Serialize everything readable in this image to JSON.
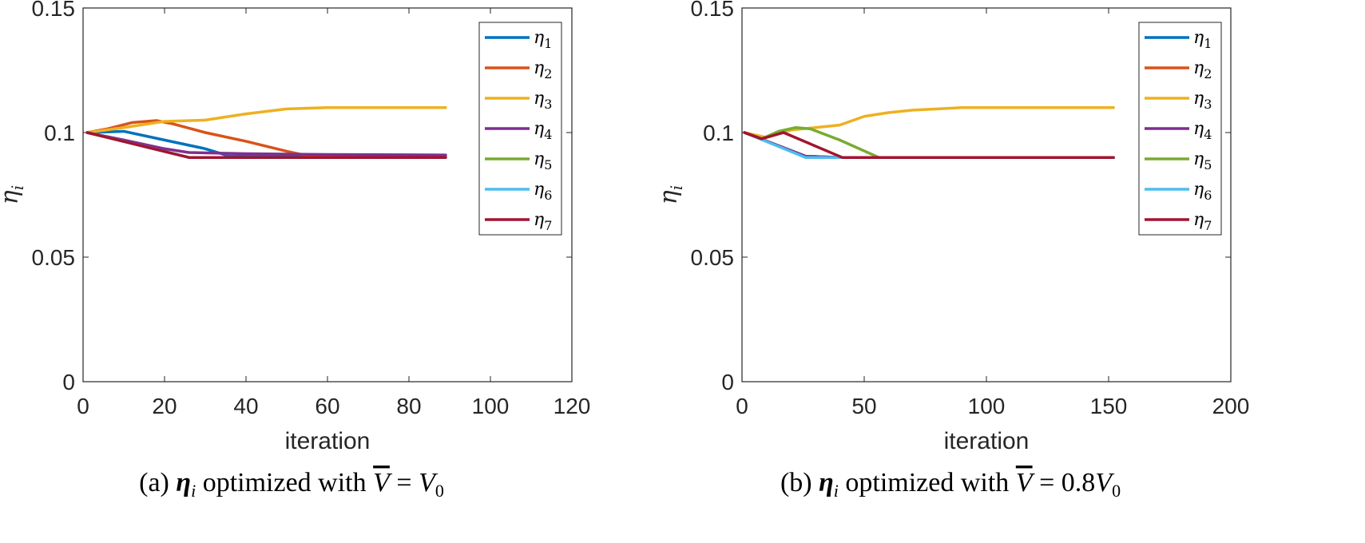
{
  "chart_data": [
    {
      "type": "line",
      "xlabel": "iteration",
      "ylabel": "η_i",
      "xlim": [
        0,
        120
      ],
      "ylim": [
        0,
        0.15
      ],
      "xticks": [
        0,
        20,
        40,
        60,
        80,
        100,
        120
      ],
      "yticks": [
        0,
        0.05,
        0.1,
        0.15
      ],
      "xtick_labels": [
        "0",
        "20",
        "40",
        "60",
        "80",
        "100",
        "120"
      ],
      "ytick_labels": [
        "0",
        "0.05",
        "0.1",
        "0.15"
      ],
      "legend_position": "top-right",
      "caption": {
        "prefix": "(a)",
        "symbol": "η",
        "sub": "i",
        "text": "optimized with",
        "lhs": "V",
        "rhs": "= V",
        "rhs_sub": "0"
      },
      "series": [
        {
          "name": "η1",
          "label": "η",
          "sub": "1",
          "color": "#0072BD",
          "x": [
            1,
            10,
            20,
            30,
            36,
            50,
            70,
            89
          ],
          "y": [
            0.1,
            0.1005,
            0.097,
            0.0935,
            0.0905,
            0.0907,
            0.0907,
            0.0907
          ]
        },
        {
          "name": "η2",
          "label": "η",
          "sub": "2",
          "color": "#D95319",
          "x": [
            1,
            6,
            12,
            18,
            22,
            30,
            40,
            50,
            55,
            70,
            89
          ],
          "y": [
            0.1,
            0.1015,
            0.104,
            0.1048,
            0.1035,
            0.1,
            0.0965,
            0.0925,
            0.0907,
            0.0907,
            0.0907
          ]
        },
        {
          "name": "η3",
          "label": "η",
          "sub": "3",
          "color": "#EDB120",
          "x": [
            1,
            10,
            20,
            30,
            40,
            50,
            60,
            70,
            80,
            89
          ],
          "y": [
            0.1,
            0.102,
            0.1045,
            0.105,
            0.1075,
            0.1095,
            0.11,
            0.11,
            0.11,
            0.11
          ]
        },
        {
          "name": "η4",
          "label": "η",
          "sub": "4",
          "color": "#7E2F8E",
          "x": [
            1,
            10,
            20,
            26,
            40,
            60,
            89
          ],
          "y": [
            0.1,
            0.097,
            0.0935,
            0.092,
            0.0915,
            0.0912,
            0.091
          ]
        },
        {
          "name": "η5",
          "label": "η",
          "sub": "5",
          "color": "#77AC30",
          "x": [
            1,
            26,
            89
          ],
          "y": [
            0.1,
            0.09,
            0.09
          ]
        },
        {
          "name": "η6",
          "label": "η",
          "sub": "6",
          "color": "#4DBEEE",
          "x": [
            1,
            26,
            89
          ],
          "y": [
            0.1,
            0.09,
            0.09
          ]
        },
        {
          "name": "η7",
          "label": "η",
          "sub": "7",
          "color": "#A2142F",
          "x": [
            1,
            26,
            89
          ],
          "y": [
            0.1,
            0.09,
            0.09
          ]
        }
      ]
    },
    {
      "type": "line",
      "xlabel": "iteration",
      "ylabel": "η_i",
      "xlim": [
        0,
        200
      ],
      "ylim": [
        0,
        0.15
      ],
      "xticks": [
        0,
        50,
        100,
        150,
        200
      ],
      "yticks": [
        0,
        0.05,
        0.1,
        0.15
      ],
      "xtick_labels": [
        "0",
        "50",
        "100",
        "150",
        "200"
      ],
      "ytick_labels": [
        "0",
        "0.05",
        "0.1",
        "0.15"
      ],
      "legend_position": "top-right",
      "caption": {
        "prefix": "(b)",
        "symbol": "η",
        "sub": "i",
        "text": "optimized with",
        "lhs": "V",
        "rhs": "= 0.8V",
        "rhs_sub": "0"
      },
      "series": [
        {
          "name": "η1",
          "label": "η",
          "sub": "1",
          "color": "#0072BD",
          "x": [
            1,
            26,
            40,
            152
          ],
          "y": [
            0.1,
            0.0905,
            0.09,
            0.09
          ]
        },
        {
          "name": "η2",
          "label": "η",
          "sub": "2",
          "color": "#D95319",
          "x": [
            1,
            26,
            40,
            152
          ],
          "y": [
            0.1,
            0.0905,
            0.09,
            0.09
          ]
        },
        {
          "name": "η3",
          "label": "η",
          "sub": "3",
          "color": "#EDB120",
          "x": [
            1,
            10,
            20,
            30,
            40,
            50,
            60,
            70,
            80,
            90,
            100,
            120,
            140,
            152
          ],
          "y": [
            0.1,
            0.098,
            0.101,
            0.102,
            0.103,
            0.1065,
            0.108,
            0.109,
            0.1095,
            0.11,
            0.11,
            0.11,
            0.11,
            0.11
          ]
        },
        {
          "name": "η4",
          "label": "η",
          "sub": "4",
          "color": "#7E2F8E",
          "x": [
            1,
            26,
            40,
            152
          ],
          "y": [
            0.1,
            0.0905,
            0.09,
            0.09
          ]
        },
        {
          "name": "η5",
          "label": "η",
          "sub": "5",
          "color": "#77AC30",
          "x": [
            1,
            8,
            15,
            22,
            28,
            40,
            56,
            80,
            152
          ],
          "y": [
            0.1,
            0.0975,
            0.1005,
            0.102,
            0.1015,
            0.097,
            0.09,
            0.09,
            0.09
          ]
        },
        {
          "name": "η6",
          "label": "η",
          "sub": "6",
          "color": "#4DBEEE",
          "x": [
            1,
            26,
            40,
            152
          ],
          "y": [
            0.1,
            0.09,
            0.09,
            0.09
          ]
        },
        {
          "name": "η7",
          "label": "η",
          "sub": "7",
          "color": "#A2142F",
          "x": [
            1,
            8,
            17,
            41,
            60,
            152
          ],
          "y": [
            0.1,
            0.0975,
            0.1,
            0.09,
            0.09,
            0.09
          ]
        }
      ]
    }
  ]
}
